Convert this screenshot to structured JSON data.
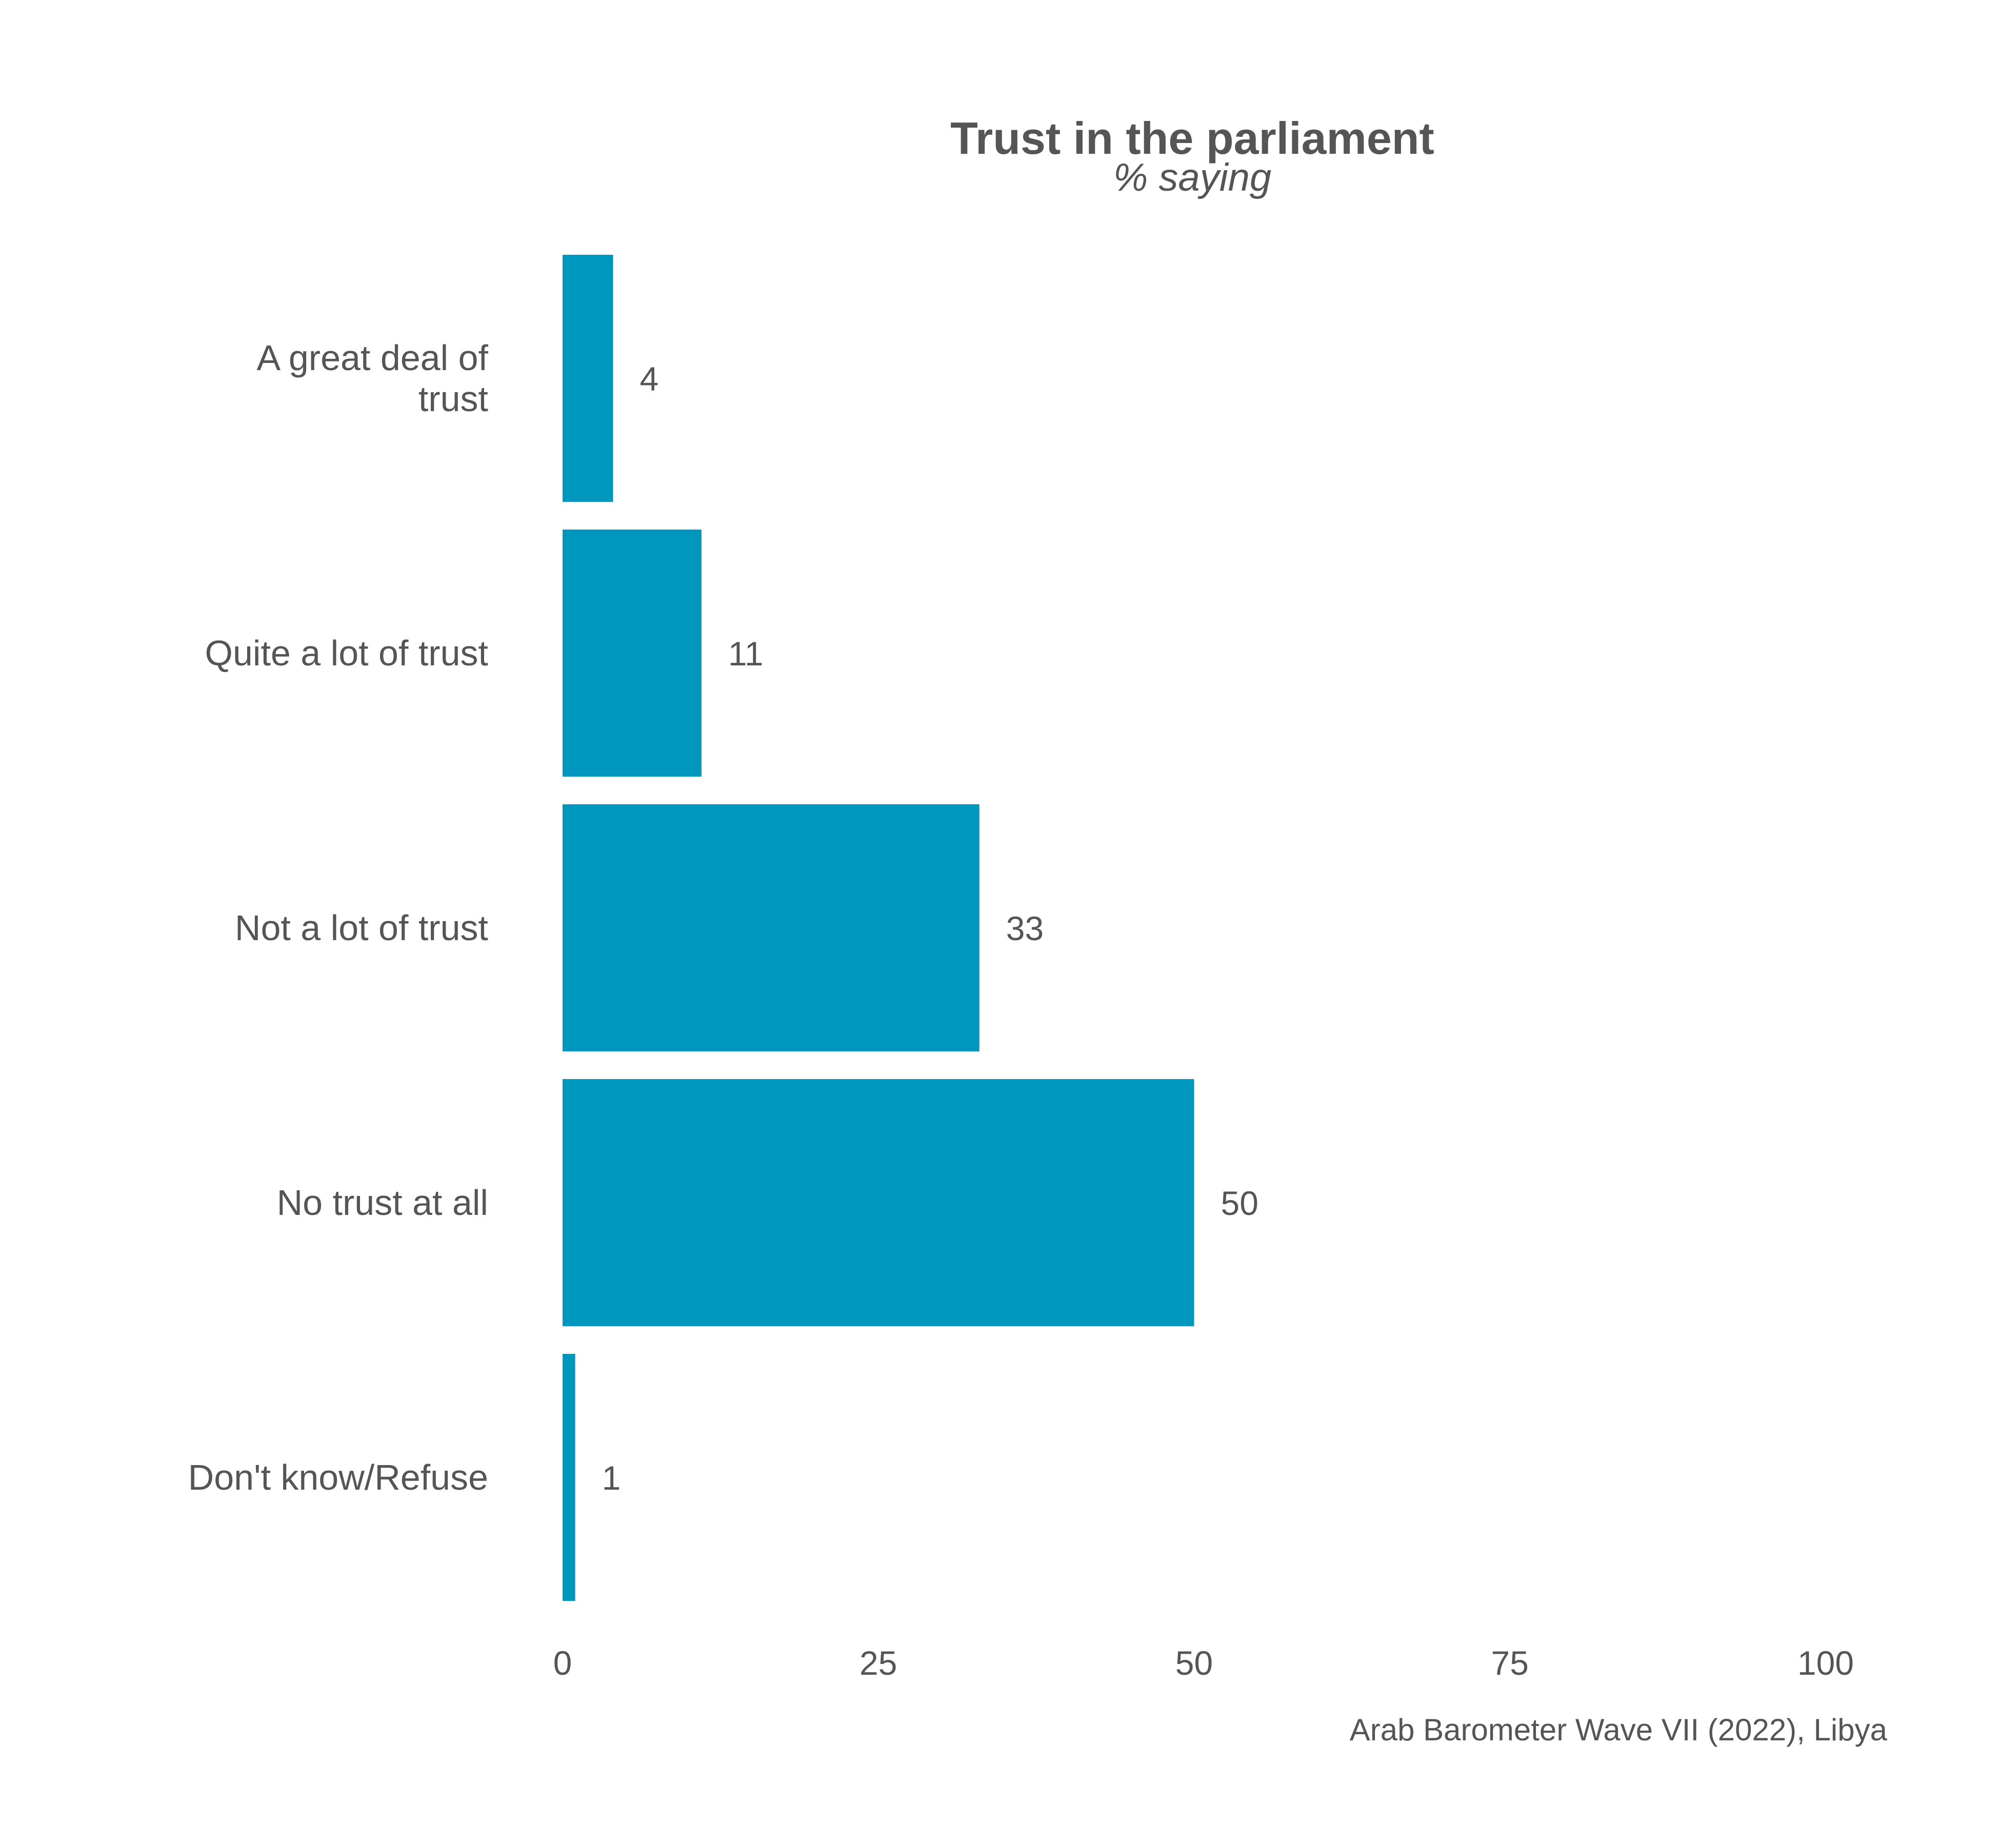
{
  "chart_data": {
    "type": "bar",
    "orientation": "horizontal",
    "title": "Trust in the parliament",
    "subtitle": "% saying",
    "categories": [
      [
        "A great deal of",
        "trust"
      ],
      [
        "Quite a lot of trust"
      ],
      [
        "Not a lot of trust"
      ],
      [
        "No trust at all"
      ],
      [
        "Don't know/Refuse"
      ]
    ],
    "values": [
      4,
      11,
      33,
      50,
      1
    ],
    "data_labels": [
      "4",
      "11",
      "33",
      "50",
      "1"
    ],
    "xlim": [
      0,
      100
    ],
    "xticks": [
      0,
      25,
      50,
      75,
      100
    ],
    "xtick_labels": [
      "0",
      "25",
      "50",
      "75",
      "100"
    ],
    "xlabel": "",
    "ylabel": "",
    "grid": false,
    "caption": "Arab Barometer Wave VII (2022), Libya",
    "bar_color": "#0096BE",
    "text_color": "#555555"
  }
}
